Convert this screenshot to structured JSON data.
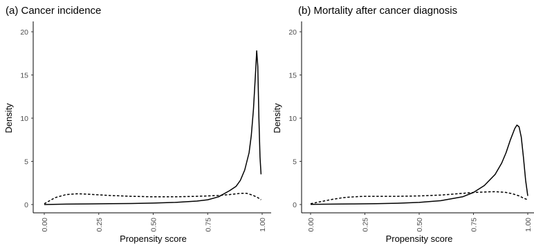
{
  "chart_data": [
    {
      "type": "line",
      "title": "(a) Cancer incidence",
      "xlabel": "Propensity score",
      "ylabel": "Density",
      "xlim": [
        0,
        1
      ],
      "ylim": [
        0,
        20
      ],
      "xticks": [
        "0.00",
        "0.25",
        "0.50",
        "0.75",
        "1.00"
      ],
      "yticks": [
        "0",
        "5",
        "10",
        "15",
        "20"
      ],
      "grid": false,
      "legend": "none",
      "series": [
        {
          "style": "solid",
          "x": [
            0.0,
            0.1,
            0.2,
            0.3,
            0.4,
            0.5,
            0.6,
            0.7,
            0.75,
            0.8,
            0.85,
            0.88,
            0.9,
            0.92,
            0.94,
            0.95,
            0.96,
            0.97,
            0.975,
            0.98,
            0.985,
            0.99,
            0.995
          ],
          "y": [
            0.0,
            0.05,
            0.07,
            0.1,
            0.12,
            0.17,
            0.25,
            0.4,
            0.55,
            0.9,
            1.6,
            2.1,
            2.8,
            4.0,
            6.0,
            8.0,
            11.0,
            15.5,
            17.8,
            16.0,
            10.0,
            5.5,
            3.5
          ]
        },
        {
          "style": "dashed",
          "x": [
            0.0,
            0.05,
            0.1,
            0.15,
            0.2,
            0.3,
            0.4,
            0.5,
            0.6,
            0.7,
            0.8,
            0.85,
            0.9,
            0.93,
            0.96,
            0.98,
            0.995
          ],
          "y": [
            0.1,
            0.8,
            1.15,
            1.25,
            1.2,
            1.05,
            0.95,
            0.9,
            0.9,
            0.95,
            1.05,
            1.15,
            1.3,
            1.3,
            1.05,
            0.8,
            0.55
          ]
        }
      ]
    },
    {
      "type": "line",
      "title": "(b) Mortality after cancer diagnosis",
      "xlabel": "Propensity score",
      "ylabel": "Density",
      "xlim": [
        0,
        1
      ],
      "ylim": [
        0,
        20
      ],
      "xticks": [
        "0.00",
        "0.25",
        "0.50",
        "0.75",
        "1.00"
      ],
      "yticks": [
        "0",
        "5",
        "10",
        "15",
        "20"
      ],
      "grid": false,
      "legend": "none",
      "series": [
        {
          "style": "solid",
          "x": [
            0.0,
            0.1,
            0.2,
            0.3,
            0.4,
            0.5,
            0.6,
            0.7,
            0.75,
            0.8,
            0.85,
            0.88,
            0.9,
            0.92,
            0.94,
            0.95,
            0.96,
            0.97,
            0.98,
            0.99,
            1.0
          ],
          "y": [
            0.02,
            0.05,
            0.07,
            0.1,
            0.15,
            0.25,
            0.45,
            0.9,
            1.4,
            2.2,
            3.5,
            4.8,
            6.0,
            7.5,
            8.8,
            9.2,
            9.0,
            7.8,
            5.5,
            2.8,
            1.0
          ]
        },
        {
          "style": "dashed",
          "x": [
            0.0,
            0.05,
            0.1,
            0.15,
            0.2,
            0.25,
            0.3,
            0.4,
            0.5,
            0.6,
            0.7,
            0.75,
            0.8,
            0.85,
            0.9,
            0.93,
            0.96,
            0.98,
            1.0
          ],
          "y": [
            0.1,
            0.35,
            0.6,
            0.8,
            0.9,
            0.95,
            0.95,
            0.95,
            1.0,
            1.1,
            1.3,
            1.4,
            1.45,
            1.5,
            1.4,
            1.25,
            1.0,
            0.75,
            0.55
          ]
        }
      ]
    }
  ]
}
